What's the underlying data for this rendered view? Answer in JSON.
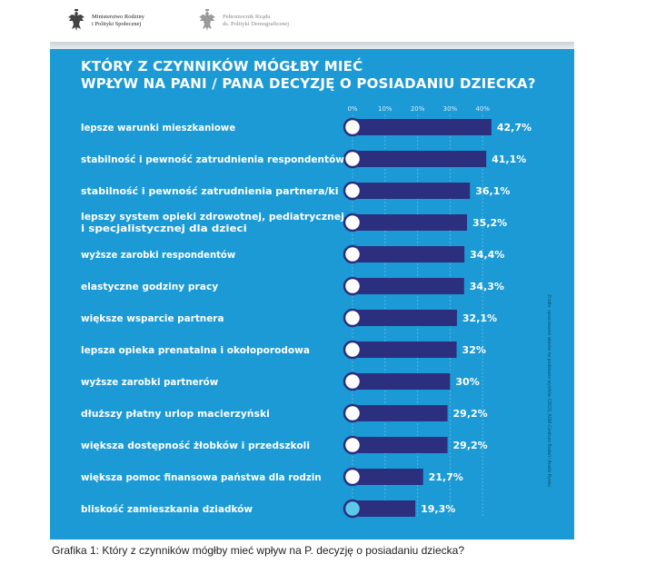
{
  "header": {
    "logo_left": {
      "line1": "Ministerstwo Rodziny",
      "line2": "i Polityki Społecznej",
      "icon": "polish-eagle-emblem"
    },
    "logo_right": {
      "line1": "Pełnomocnik Rządu",
      "line2": "ds. Polityki Demograficznej",
      "icon": "polish-eagle-emblem"
    }
  },
  "colors": {
    "panel_background": "#1c9ad6",
    "bar_fill": "#2b2f7e",
    "text": "#ffffff",
    "marker_fill": "#ffffff",
    "marker_fill_last": "#5ec8ec"
  },
  "chart_data": {
    "type": "bar",
    "orientation": "horizontal",
    "title_lines": [
      "KTÓRY Z CZYNNIKÓW MÓGŁBY MIEĆ",
      "WPŁYW NA PANI / PANA DECYZJĘ O POSIADANIU DZIECKA?"
    ],
    "x_ticks": [
      "0%",
      "10%",
      "20%",
      "30%",
      "40%"
    ],
    "x_tick_values": [
      0,
      10,
      20,
      30,
      40
    ],
    "xlim": [
      0,
      42.7
    ],
    "grid": true,
    "categories": [
      [
        "lepsze warunki mieszkaniowe"
      ],
      [
        "stabilność i pewność  zatrudnienia  respondentów"
      ],
      [
        "stabilność i pewność zatrudnienia partnera/ki"
      ],
      [
        "lepszy system opieki zdrowotnej, pediatrycznej",
        "i specjalistycznej dla dzieci"
      ],
      [
        "wyższe zarobki respondentów"
      ],
      [
        "elastyczne godziny pracy"
      ],
      [
        "większe wsparcie partnera"
      ],
      [
        "lepsza opieka prenatalna i okołoporodowa"
      ],
      [
        "wyższe zarobki partnerów"
      ],
      [
        "dłuższy płatny urlop macierzyński"
      ],
      [
        "większa dostępność żłobków i przedszkoli"
      ],
      [
        "większa pomoc finansowa państwa dla rodzin"
      ],
      [
        "bliskość zamieszkania dziadków"
      ]
    ],
    "values": [
      42.7,
      41.1,
      36.1,
      35.2,
      34.4,
      34.3,
      32.1,
      32,
      30,
      29.2,
      29.2,
      21.7,
      19.3
    ],
    "value_labels": [
      "42,7%",
      "41,1%",
      "36,1%",
      "35,2%",
      "34,4%",
      "34,3%",
      "32,1%",
      "32%",
      "30%",
      "29,2%",
      "29,2%",
      "21,7%",
      "19,3%"
    ]
  },
  "source_note": "Źródło: opracowanie własne na podstawie wyników CBOS, ASM-Centrum Badań i Analiz Rynku",
  "caption": "Grafika 1: Który z czynników mógłby mieć wpływ na P. decyzję o posiadaniu dziecka?"
}
